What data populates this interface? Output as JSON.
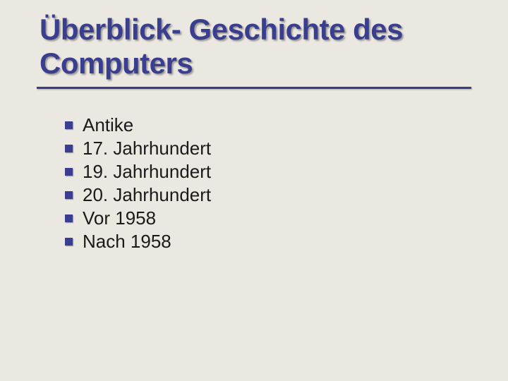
{
  "title": "Überblick- Geschichte des Computers",
  "title_color": "#3a3e8f",
  "title_fontsize": 42,
  "underline_color": "#3a3e8f",
  "background_color": "#ebe8e1",
  "bullets": {
    "color": "#3a3e8f",
    "size": 11,
    "text_color": "#1a1a1a",
    "fontsize": 26,
    "items": [
      "Antike",
      "17. Jahrhundert",
      "19. Jahrhundert",
      "20. Jahrhundert",
      "Vor 1958",
      "Nach 1958"
    ]
  }
}
